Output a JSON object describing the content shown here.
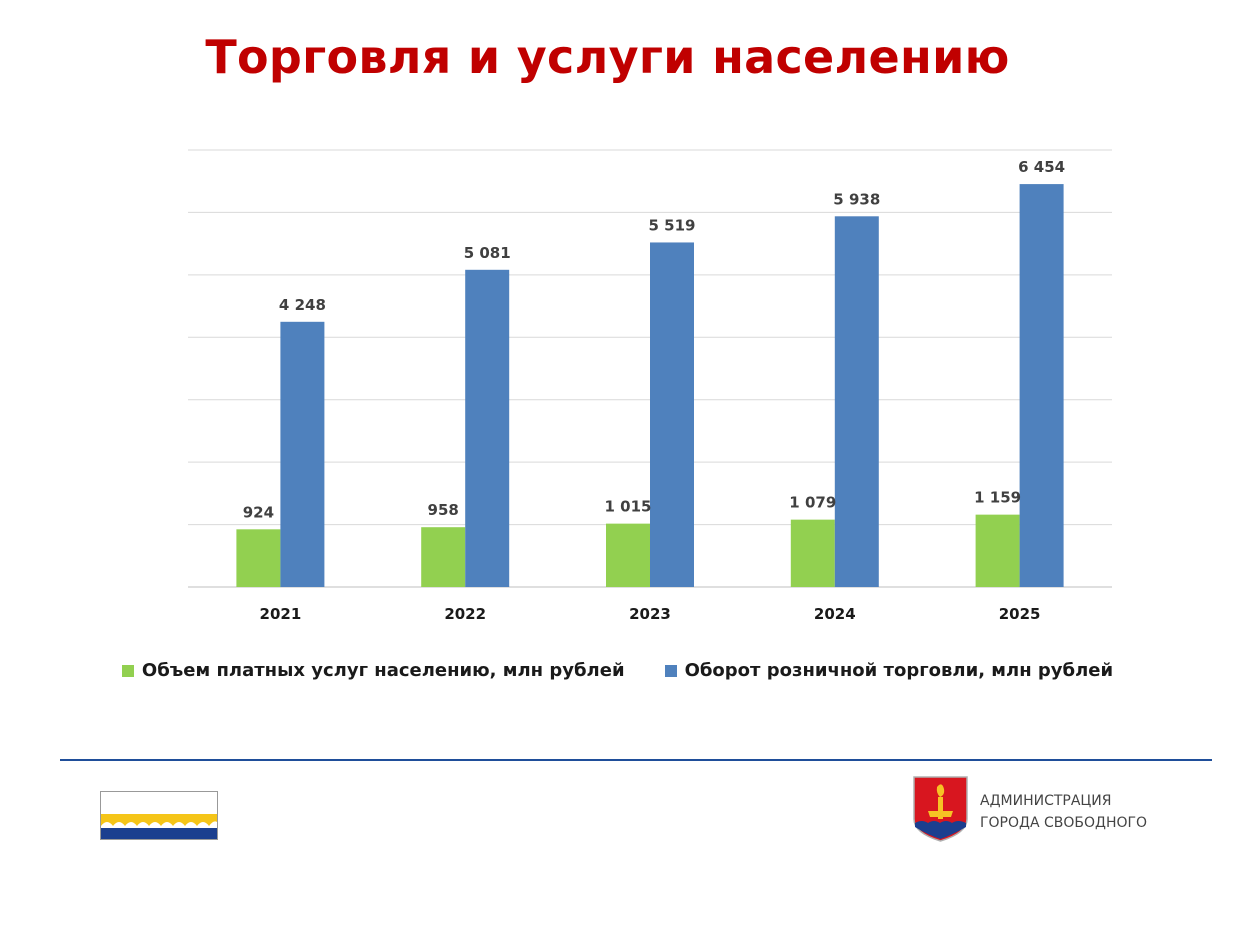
{
  "title": "Торговля и услуги населению",
  "chart_data": {
    "type": "bar",
    "categories": [
      "2021",
      "2022",
      "2023",
      "2024",
      "2025"
    ],
    "series": [
      {
        "name": "Объем платных услуг населению, млн рублей",
        "values": [
          924,
          958,
          1015,
          1079,
          1159
        ],
        "labels": [
          "924",
          "958",
          "1 015",
          "1 079",
          "1 159"
        ],
        "color": "#92d050"
      },
      {
        "name": "Оборот розничной торговли, млн рублей",
        "values": [
          4248,
          5081,
          5519,
          5938,
          6454
        ],
        "labels": [
          "4 248",
          "5 081",
          "5 519",
          "5 938",
          "6 454"
        ],
        "color": "#4f81bd"
      }
    ],
    "ylim": [
      0,
      7000
    ],
    "grid": true,
    "legend_position": "bottom",
    "y_tick_labels_visible": false
  },
  "footer": {
    "admin_line1": "АДМИНИСТРАЦИЯ",
    "admin_line2": "ГОРОДА СВОБОДНОГО",
    "divider_color": "#1f4e9a"
  }
}
